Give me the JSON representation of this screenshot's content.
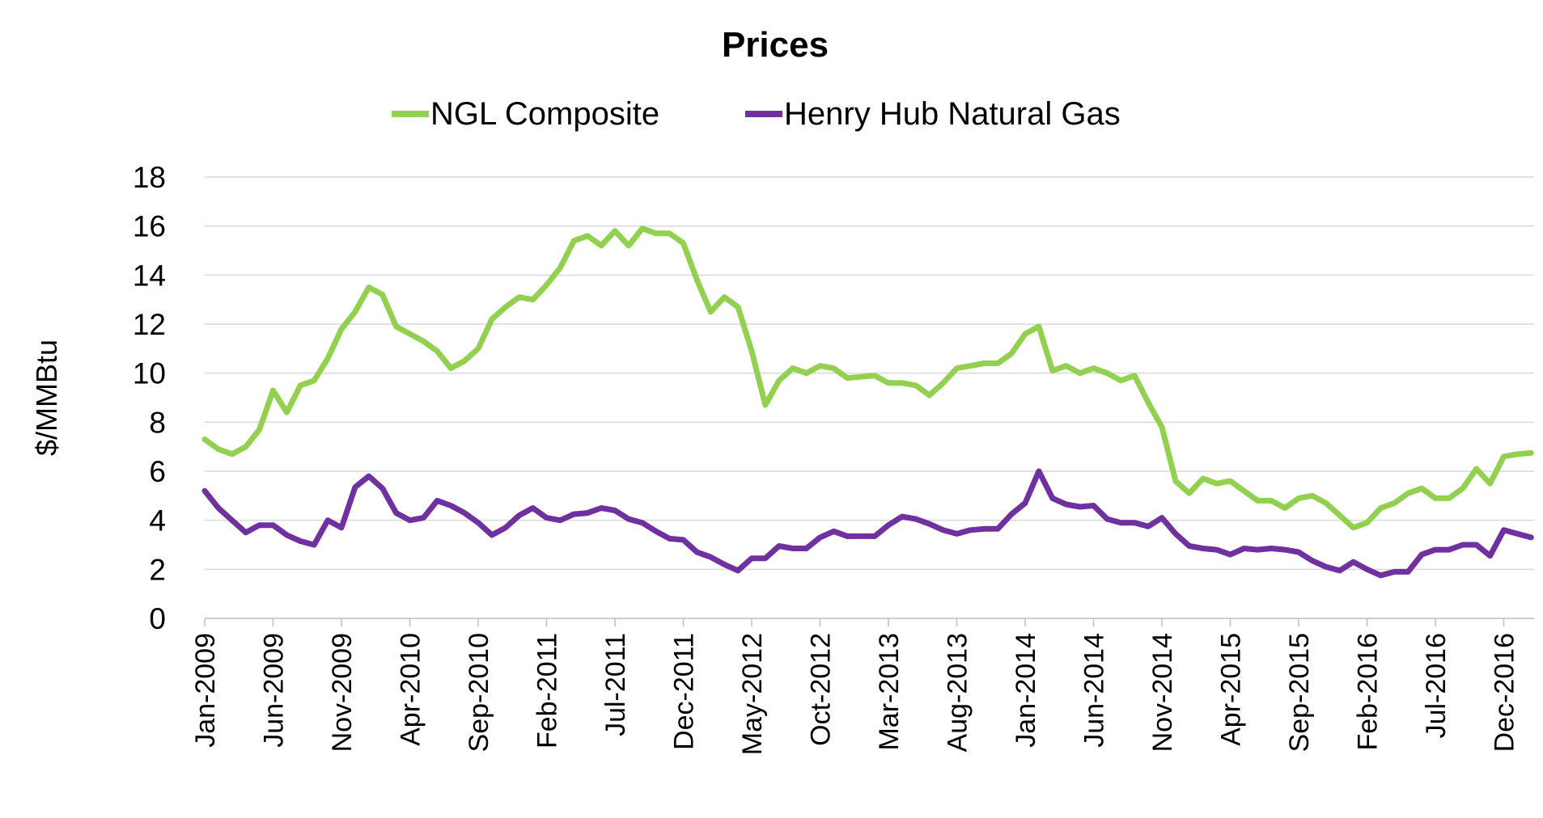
{
  "chart_data": {
    "type": "line",
    "title": "Prices",
    "ylabel": "$/MMBtu",
    "xlabel": "",
    "ylim": [
      0,
      18
    ],
    "yticks": [
      0,
      2,
      4,
      6,
      8,
      10,
      12,
      14,
      16,
      18
    ],
    "grid": "horizontal",
    "legend": "top",
    "x_start": "2009-01",
    "x_frequency": "monthly",
    "xtick_labels": [
      "Jan-2009",
      "Jun-2009",
      "Nov-2009",
      "Apr-2010",
      "Sep-2010",
      "Feb-2011",
      "Jul-2011",
      "Dec-2011",
      "May-2012",
      "Oct-2012",
      "Mar-2013",
      "Aug-2013",
      "Jan-2014",
      "Jun-2014",
      "Nov-2014",
      "Apr-2015",
      "Sep-2015",
      "Feb-2016",
      "Jul-2016",
      "Dec-2016"
    ],
    "series": [
      {
        "name": "NGL Composite",
        "color": "#92d050",
        "values": [
          7.3,
          6.9,
          6.7,
          7.0,
          7.7,
          9.3,
          8.4,
          9.5,
          9.7,
          10.6,
          11.8,
          12.5,
          13.5,
          13.2,
          11.9,
          11.6,
          11.3,
          10.9,
          10.2,
          10.5,
          11.0,
          12.2,
          12.7,
          13.1,
          13.0,
          13.6,
          14.3,
          15.4,
          15.6,
          15.2,
          15.8,
          15.2,
          15.9,
          15.7,
          15.7,
          15.3,
          13.8,
          12.5,
          13.1,
          12.7,
          10.9,
          8.7,
          9.7,
          10.2,
          10.0,
          10.3,
          10.2,
          9.8,
          9.85,
          9.9,
          9.6,
          9.6,
          9.5,
          9.1,
          9.6,
          10.2,
          10.3,
          10.4,
          10.4,
          10.8,
          11.6,
          11.9,
          10.1,
          10.3,
          10.0,
          10.2,
          10.0,
          9.7,
          9.9,
          8.8,
          7.8,
          5.6,
          5.1,
          5.7,
          5.5,
          5.6,
          5.2,
          4.8,
          4.8,
          4.5,
          4.9,
          5.0,
          4.7,
          4.2,
          3.7,
          3.9,
          4.5,
          4.7,
          5.1,
          5.3,
          4.9,
          4.9,
          5.3,
          6.1,
          5.5,
          6.6,
          6.7,
          6.75
        ]
      },
      {
        "name": "Henry Hub Natural Gas",
        "color": "#7030a0",
        "values": [
          5.2,
          4.5,
          4.0,
          3.5,
          3.8,
          3.8,
          3.4,
          3.15,
          3.0,
          4.0,
          3.7,
          5.35,
          5.8,
          5.3,
          4.3,
          4.0,
          4.1,
          4.8,
          4.6,
          4.3,
          3.9,
          3.4,
          3.7,
          4.2,
          4.5,
          4.1,
          4.0,
          4.25,
          4.3,
          4.5,
          4.4,
          4.05,
          3.9,
          3.55,
          3.25,
          3.2,
          2.7,
          2.5,
          2.2,
          1.95,
          2.45,
          2.45,
          2.95,
          2.85,
          2.85,
          3.3,
          3.55,
          3.35,
          3.35,
          3.35,
          3.8,
          4.15,
          4.05,
          3.85,
          3.6,
          3.45,
          3.6,
          3.65,
          3.65,
          4.25,
          4.7,
          6.0,
          4.9,
          4.65,
          4.55,
          4.6,
          4.05,
          3.9,
          3.9,
          3.75,
          4.1,
          3.45,
          2.95,
          2.85,
          2.8,
          2.6,
          2.85,
          2.8,
          2.85,
          2.8,
          2.7,
          2.35,
          2.1,
          1.95,
          2.3,
          2.0,
          1.75,
          1.9,
          1.9,
          2.6,
          2.8,
          2.8,
          3.0,
          3.0,
          2.55,
          3.6,
          3.45,
          3.3
        ]
      }
    ]
  }
}
